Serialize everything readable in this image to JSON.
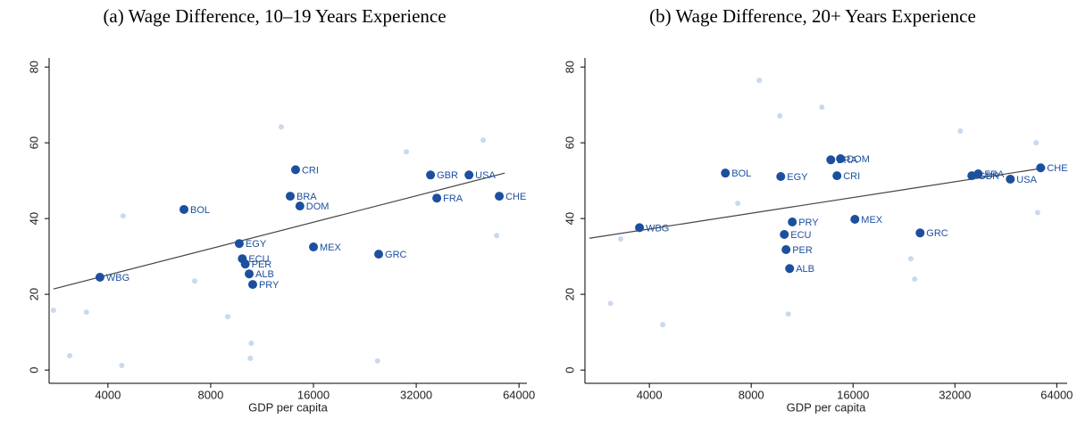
{
  "chart_data": [
    {
      "type": "scatter",
      "title": "(a) Wage Difference, 10–19 Years Experience",
      "xlabel": "GDP per capita",
      "xscale": "log",
      "xlim": [
        2690,
        67500
      ],
      "ylim": [
        -3.5,
        82.4
      ],
      "xticks": [
        4000,
        8000,
        16000,
        32000,
        64000
      ],
      "yticks": [
        0,
        20,
        40,
        60,
        80
      ],
      "series": [
        {
          "color": "#c9d9ee",
          "x": [
            2770,
            3090,
            3460,
            4430,
            4390,
            12880,
            10520,
            10450,
            29940,
            50270,
            55040,
            24650,
            7180,
            8970
          ],
          "values": [
            15.8,
            3.8,
            15.3,
            40.7,
            1.2,
            64.2,
            7.1,
            3.1,
            57.6,
            60.7,
            35.5,
            2.4,
            23.5,
            14.1
          ]
        },
        {
          "color": "#1c4f9e",
          "x": [
            3790,
            6680,
            9700,
            9900,
            10100,
            10370,
            10620,
            13680,
            14180,
            14600,
            16000,
            24840,
            35240,
            36760,
            45680,
            56030
          ],
          "values": [
            24.5,
            42.4,
            33.4,
            29.4,
            28.0,
            25.4,
            22.6,
            45.9,
            52.9,
            43.3,
            32.5,
            30.6,
            51.5,
            45.4,
            51.5,
            45.9
          ],
          "labels": [
            "WBG",
            "BOL",
            "EGY",
            "ECU",
            "PER",
            "ALB",
            "PRY",
            "BRA",
            "CRI",
            "DOM",
            "MEX",
            "GRC",
            "GBR",
            "FRA",
            "USA",
            "CHE"
          ]
        }
      ],
      "fit": {
        "color": "#444444",
        "x": [
          2770,
          58120
        ],
        "values": [
          21.4,
          52.0
        ]
      }
    },
    {
      "type": "scatter",
      "title": "(b) Wage Difference, 20+ Years Experience",
      "xlabel": "GDP per capita",
      "xscale": "log",
      "xlim": [
        2580,
        68700
      ],
      "ylim": [
        -3.5,
        82.4
      ],
      "xticks": [
        4000,
        8000,
        16000,
        32000,
        64000
      ],
      "yticks": [
        0,
        20,
        40,
        60,
        80
      ],
      "series": [
        {
          "color": "#c9d9ee",
          "x": [
            3070,
            4380,
            8450,
            9720,
            12940,
            10300,
            33200,
            55650,
            56170,
            24330,
            23700,
            3290,
            7300
          ],
          "values": [
            17.6,
            12.0,
            76.5,
            67.1,
            69.4,
            14.8,
            63.1,
            60.0,
            41.6,
            24.0,
            29.4,
            34.6,
            44.0
          ]
        },
        {
          "color": "#1c4f9e",
          "x": [
            3740,
            6710,
            9780,
            10580,
            10020,
            10140,
            10390,
            14340,
            13750,
            14690,
            16200,
            25250,
            35900,
            37500,
            46650,
            57360
          ],
          "values": [
            37.6,
            52.0,
            51.1,
            39.1,
            35.8,
            31.8,
            26.8,
            51.3,
            55.5,
            55.8,
            39.8,
            36.2,
            51.3,
            51.8,
            50.4,
            53.4
          ],
          "labels": [
            "WBG",
            "BOL",
            "EGY",
            "PRY",
            "ECU",
            "PER",
            "ALB",
            "CRI",
            "BRA",
            "DOM",
            "MEX",
            "GRC",
            "GBR",
            "FRA",
            "USA",
            "CHE"
          ]
        }
      ],
      "fit": {
        "color": "#444444",
        "x": [
          2660,
          59140
        ],
        "values": [
          34.8,
          53.4
        ]
      }
    }
  ]
}
